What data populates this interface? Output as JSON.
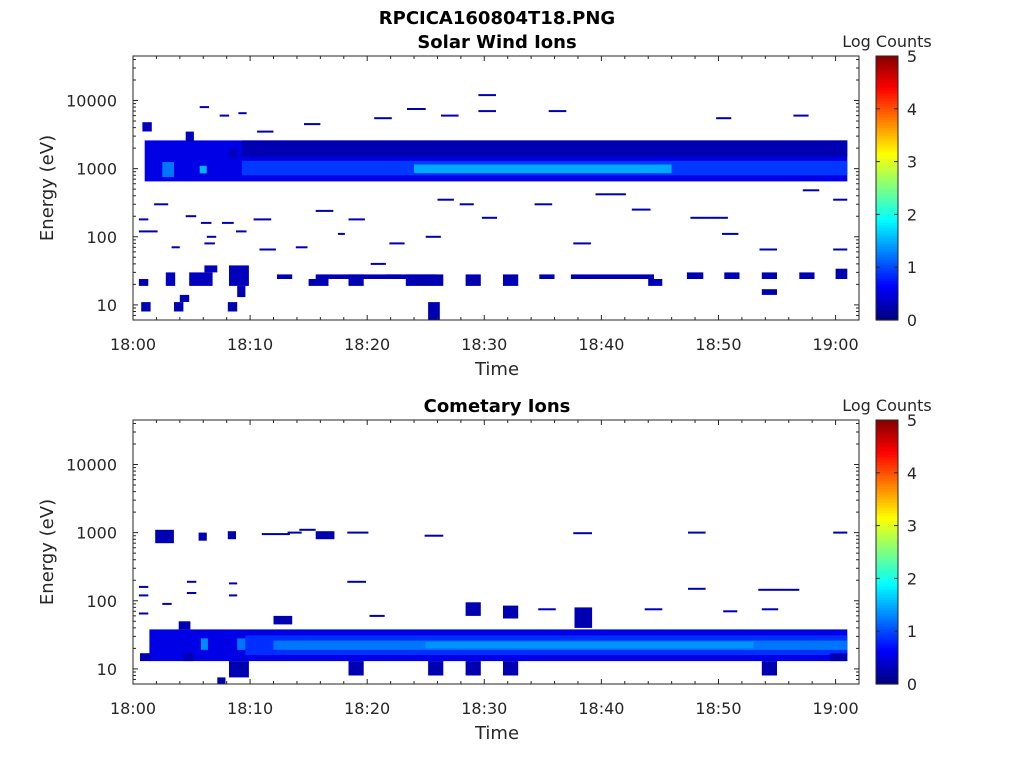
{
  "figure": {
    "title": "RPCICA160804T18.PNG"
  },
  "chart_data": [
    {
      "type": "heatmap",
      "title": "Solar Wind Ions",
      "xlabel": "Time",
      "ylabel": "Energy (eV)",
      "y_scale": "log",
      "xlim": [
        "18:00",
        "19:02"
      ],
      "ylim": [
        6,
        45000
      ],
      "x_ticks": [
        "18:00",
        "18:10",
        "18:20",
        "18:30",
        "18:40",
        "18:50",
        "19:00"
      ],
      "y_ticks": [
        "10",
        "100",
        "1000",
        "10000"
      ],
      "colorbar": {
        "label": "Log Counts",
        "range": [
          0,
          5
        ],
        "ticks": [
          "0",
          "1",
          "2",
          "3",
          "4",
          "5"
        ],
        "colormap": "jet"
      },
      "cells": [
        {
          "t0": 1.0,
          "t1": 61.0,
          "e0": 650,
          "e1": 2600,
          "v": 0.5
        },
        {
          "t0": 9.3,
          "t1": 61.0,
          "e0": 800,
          "e1": 1300,
          "v": 0.9
        },
        {
          "t0": 24.0,
          "t1": 46.0,
          "e0": 860,
          "e1": 1150,
          "v": 1.45
        },
        {
          "t0": 2.5,
          "t1": 3.5,
          "e0": 750,
          "e1": 1250,
          "v": 1.2
        },
        {
          "t0": 5.7,
          "t1": 6.3,
          "e0": 850,
          "e1": 1100,
          "v": 1.5
        },
        {
          "t0": 9.3,
          "t1": 61.0,
          "e0": 1500,
          "e1": 2600,
          "v": 0.25
        },
        {
          "t0": 0.8,
          "t1": 1.6,
          "e0": 3500,
          "e1": 4800,
          "v": 0.3
        },
        {
          "t0": 4.5,
          "t1": 5.2,
          "e0": 2500,
          "e1": 3500,
          "v": 0.3
        },
        {
          "t0": 8.2,
          "t1": 8.9,
          "e0": 1400,
          "e1": 2000,
          "v": 0.3
        },
        {
          "t0": 0.5,
          "t1": 1.3,
          "e0": 19,
          "e1": 24,
          "v": 0.25
        },
        {
          "t0": 2.8,
          "t1": 3.6,
          "e0": 19,
          "e1": 30,
          "v": 0.3
        },
        {
          "t0": 4.8,
          "t1": 6.8,
          "e0": 19,
          "e1": 30,
          "v": 0.3
        },
        {
          "t0": 6.1,
          "t1": 7.2,
          "e0": 30,
          "e1": 38,
          "v": 0.3
        },
        {
          "t0": 8.2,
          "t1": 9.9,
          "e0": 19,
          "e1": 38,
          "v": 0.3
        },
        {
          "t0": 8.9,
          "t1": 9.6,
          "e0": 13,
          "e1": 19,
          "v": 0.25
        },
        {
          "t0": 0.7,
          "t1": 1.5,
          "e0": 8,
          "e1": 11,
          "v": 0.25
        },
        {
          "t0": 3.5,
          "t1": 4.3,
          "e0": 8,
          "e1": 11,
          "v": 0.25
        },
        {
          "t0": 4.0,
          "t1": 4.8,
          "e0": 11,
          "e1": 14,
          "v": 0.25
        },
        {
          "t0": 8.1,
          "t1": 8.9,
          "e0": 8,
          "e1": 11,
          "v": 0.25
        },
        {
          "t0": 12.3,
          "t1": 13.6,
          "e0": 24,
          "e1": 28,
          "v": 0.25
        },
        {
          "t0": 15.0,
          "t1": 16.7,
          "e0": 19,
          "e1": 24,
          "v": 0.25
        },
        {
          "t0": 15.6,
          "t1": 25.9,
          "e0": 24,
          "e1": 28,
          "v": 0.25
        },
        {
          "t0": 18.4,
          "t1": 19.7,
          "e0": 19,
          "e1": 28,
          "v": 0.25
        },
        {
          "t0": 21.6,
          "t1": 22.9,
          "e0": 24,
          "e1": 28,
          "v": 0.25
        },
        {
          "t0": 23.3,
          "t1": 26.5,
          "e0": 19,
          "e1": 28,
          "v": 0.25
        },
        {
          "t0": 28.4,
          "t1": 29.7,
          "e0": 19,
          "e1": 28,
          "v": 0.25
        },
        {
          "t0": 31.6,
          "t1": 32.9,
          "e0": 19,
          "e1": 28,
          "v": 0.25
        },
        {
          "t0": 34.7,
          "t1": 36.0,
          "e0": 24,
          "e1": 28,
          "v": 0.25
        },
        {
          "t0": 37.4,
          "t1": 44.5,
          "e0": 24,
          "e1": 28,
          "v": 0.25
        },
        {
          "t0": 44.0,
          "t1": 45.2,
          "e0": 19,
          "e1": 24,
          "v": 0.25
        },
        {
          "t0": 47.3,
          "t1": 48.7,
          "e0": 24,
          "e1": 30,
          "v": 0.25
        },
        {
          "t0": 50.5,
          "t1": 51.8,
          "e0": 24,
          "e1": 30,
          "v": 0.25
        },
        {
          "t0": 53.7,
          "t1": 55.0,
          "e0": 24,
          "e1": 30,
          "v": 0.25
        },
        {
          "t0": 53.7,
          "t1": 55.0,
          "e0": 14,
          "e1": 17,
          "v": 0.25
        },
        {
          "t0": 56.9,
          "t1": 58.2,
          "e0": 24,
          "e1": 30,
          "v": 0.25
        },
        {
          "t0": 60.0,
          "t1": 61.0,
          "e0": 24,
          "e1": 34,
          "v": 0.25
        },
        {
          "t0": 25.2,
          "t1": 26.2,
          "e0": 6,
          "e1": 11,
          "v": 0.25
        }
      ],
      "lines": [
        {
          "t0": 0.5,
          "t1": 1.3,
          "e": 180
        },
        {
          "t0": 1.8,
          "t1": 3.0,
          "e": 300
        },
        {
          "t0": 3.3,
          "t1": 4.0,
          "e": 70
        },
        {
          "t0": 4.5,
          "t1": 5.4,
          "e": 200
        },
        {
          "t0": 5.8,
          "t1": 6.7,
          "e": 160
        },
        {
          "t0": 6.3,
          "t1": 7.1,
          "e": 100
        },
        {
          "t0": 7.6,
          "t1": 8.6,
          "e": 160
        },
        {
          "t0": 8.8,
          "t1": 9.7,
          "e": 120
        },
        {
          "t0": 10.3,
          "t1": 11.8,
          "e": 180
        },
        {
          "t0": 10.8,
          "t1": 12.2,
          "e": 65
        },
        {
          "t0": 13.9,
          "t1": 14.9,
          "e": 70
        },
        {
          "t0": 15.6,
          "t1": 17.1,
          "e": 240
        },
        {
          "t0": 17.5,
          "t1": 18.1,
          "e": 110
        },
        {
          "t0": 18.4,
          "t1": 19.8,
          "e": 180
        },
        {
          "t0": 20.3,
          "t1": 21.6,
          "e": 40
        },
        {
          "t0": 21.9,
          "t1": 23.2,
          "e": 80
        },
        {
          "t0": 25.0,
          "t1": 26.3,
          "e": 100
        },
        {
          "t0": 26.0,
          "t1": 27.4,
          "e": 350
        },
        {
          "t0": 27.9,
          "t1": 29.1,
          "e": 300
        },
        {
          "t0": 29.8,
          "t1": 31.1,
          "e": 190
        },
        {
          "t0": 34.3,
          "t1": 35.8,
          "e": 300
        },
        {
          "t0": 37.6,
          "t1": 39.1,
          "e": 80
        },
        {
          "t0": 39.5,
          "t1": 42.1,
          "e": 420
        },
        {
          "t0": 42.6,
          "t1": 44.2,
          "e": 250
        },
        {
          "t0": 47.6,
          "t1": 50.8,
          "e": 190
        },
        {
          "t0": 50.3,
          "t1": 51.7,
          "e": 110
        },
        {
          "t0": 53.5,
          "t1": 55.0,
          "e": 65
        },
        {
          "t0": 57.2,
          "t1": 58.6,
          "e": 480
        },
        {
          "t0": 59.8,
          "t1": 61.0,
          "e": 350
        },
        {
          "t0": 59.8,
          "t1": 61.0,
          "e": 65
        },
        {
          "t0": 20.6,
          "t1": 22.1,
          "e": 5500
        },
        {
          "t0": 23.4,
          "t1": 25.0,
          "e": 7500
        },
        {
          "t0": 26.3,
          "t1": 27.8,
          "e": 6000
        },
        {
          "t0": 29.5,
          "t1": 31.0,
          "e": 12000
        },
        {
          "t0": 29.5,
          "t1": 31.0,
          "e": 7000
        },
        {
          "t0": 35.5,
          "t1": 37.0,
          "e": 7000
        },
        {
          "t0": 49.8,
          "t1": 51.1,
          "e": 5500
        },
        {
          "t0": 56.4,
          "t1": 57.7,
          "e": 6000
        },
        {
          "t0": 10.6,
          "t1": 12.0,
          "e": 3500
        },
        {
          "t0": 14.6,
          "t1": 16.0,
          "e": 4500
        },
        {
          "t0": 5.7,
          "t1": 6.5,
          "e": 8000
        },
        {
          "t0": 7.4,
          "t1": 8.2,
          "e": 6000
        },
        {
          "t0": 9.0,
          "t1": 9.7,
          "e": 6500
        },
        {
          "t0": 0.5,
          "t1": 2.1,
          "e": 120
        },
        {
          "t0": 6.1,
          "t1": 7.0,
          "e": 80
        }
      ]
    },
    {
      "type": "heatmap",
      "title": "Cometary Ions",
      "xlabel": "Time",
      "ylabel": "Energy (eV)",
      "y_scale": "log",
      "xlim": [
        "18:00",
        "19:02"
      ],
      "ylim": [
        6,
        45000
      ],
      "x_ticks": [
        "18:00",
        "18:10",
        "18:20",
        "18:30",
        "18:40",
        "18:50",
        "19:00"
      ],
      "y_ticks": [
        "10",
        "100",
        "1000",
        "10000"
      ],
      "colorbar": {
        "label": "Log Counts",
        "range": [
          0,
          5
        ],
        "ticks": [
          "0",
          "1",
          "2",
          "3",
          "4",
          "5"
        ],
        "colormap": "jet"
      },
      "cells": [
        {
          "t0": 1.4,
          "t1": 61.0,
          "e0": 13,
          "e1": 38,
          "v": 0.5
        },
        {
          "t0": 9.6,
          "t1": 61.0,
          "e0": 16,
          "e1": 31,
          "v": 0.85
        },
        {
          "t0": 12.0,
          "t1": 61.0,
          "e0": 19,
          "e1": 26,
          "v": 1.2
        },
        {
          "t0": 25.0,
          "t1": 53.0,
          "e0": 20,
          "e1": 25,
          "v": 1.35
        },
        {
          "t0": 5.8,
          "t1": 6.4,
          "e0": 19,
          "e1": 28,
          "v": 1.3
        },
        {
          "t0": 8.9,
          "t1": 9.6,
          "e0": 19,
          "e1": 28,
          "v": 1.2
        },
        {
          "t0": 1.9,
          "t1": 3.5,
          "e0": 700,
          "e1": 1100,
          "v": 0.25
        },
        {
          "t0": 5.6,
          "t1": 6.3,
          "e0": 760,
          "e1": 1000,
          "v": 0.25
        },
        {
          "t0": 8.1,
          "t1": 8.8,
          "e0": 800,
          "e1": 1050,
          "v": 0.25
        },
        {
          "t0": 15.6,
          "t1": 17.2,
          "e0": 800,
          "e1": 1050,
          "v": 0.25
        },
        {
          "t0": 8.2,
          "t1": 9.9,
          "e0": 7.5,
          "e1": 13,
          "v": 0.25
        },
        {
          "t0": 7.2,
          "t1": 7.9,
          "e0": 6,
          "e1": 7.5,
          "v": 0.25
        },
        {
          "t0": 18.4,
          "t1": 19.7,
          "e0": 8,
          "e1": 13,
          "v": 0.25
        },
        {
          "t0": 25.2,
          "t1": 26.5,
          "e0": 8,
          "e1": 13,
          "v": 0.25
        },
        {
          "t0": 28.4,
          "t1": 29.7,
          "e0": 8,
          "e1": 13,
          "v": 0.25
        },
        {
          "t0": 31.6,
          "t1": 32.9,
          "e0": 8,
          "e1": 13,
          "v": 0.25
        },
        {
          "t0": 53.7,
          "t1": 55.0,
          "e0": 8,
          "e1": 13,
          "v": 0.25
        },
        {
          "t0": 12.0,
          "t1": 13.6,
          "e0": 45,
          "e1": 60,
          "v": 0.25
        },
        {
          "t0": 28.4,
          "t1": 29.7,
          "e0": 60,
          "e1": 95,
          "v": 0.25
        },
        {
          "t0": 31.6,
          "t1": 32.9,
          "e0": 55,
          "e1": 85,
          "v": 0.25
        },
        {
          "t0": 37.7,
          "t1": 39.2,
          "e0": 40,
          "e1": 80,
          "v": 0.25
        },
        {
          "t0": 3.9,
          "t1": 4.9,
          "e0": 38,
          "e1": 50,
          "v": 0.25
        },
        {
          "t0": 0.6,
          "t1": 1.5,
          "e0": 13,
          "e1": 17,
          "v": 0.25
        },
        {
          "t0": 4.3,
          "t1": 5.2,
          "e0": 13,
          "e1": 17,
          "v": 0.25
        },
        {
          "t0": 59.5,
          "t1": 61.0,
          "e0": 13,
          "e1": 17,
          "v": 0.25
        }
      ],
      "lines": [
        {
          "t0": 0.5,
          "t1": 1.3,
          "e": 160
        },
        {
          "t0": 0.5,
          "t1": 1.3,
          "e": 120
        },
        {
          "t0": 0.5,
          "t1": 1.3,
          "e": 65
        },
        {
          "t0": 2.5,
          "t1": 3.3,
          "e": 90
        },
        {
          "t0": 4.6,
          "t1": 5.4,
          "e": 190
        },
        {
          "t0": 4.6,
          "t1": 5.4,
          "e": 130
        },
        {
          "t0": 8.2,
          "t1": 8.9,
          "e": 180
        },
        {
          "t0": 8.2,
          "t1": 8.9,
          "e": 120
        },
        {
          "t0": 14.2,
          "t1": 15.6,
          "e": 1100
        },
        {
          "t0": 18.3,
          "t1": 19.9,
          "e": 190
        },
        {
          "t0": 18.3,
          "t1": 20.1,
          "e": 1000
        },
        {
          "t0": 20.2,
          "t1": 21.5,
          "e": 60
        },
        {
          "t0": 24.9,
          "t1": 26.5,
          "e": 900
        },
        {
          "t0": 34.6,
          "t1": 36.1,
          "e": 75
        },
        {
          "t0": 37.6,
          "t1": 39.2,
          "e": 980
        },
        {
          "t0": 43.7,
          "t1": 45.2,
          "e": 75
        },
        {
          "t0": 47.4,
          "t1": 48.9,
          "e": 1000
        },
        {
          "t0": 47.4,
          "t1": 48.9,
          "e": 150
        },
        {
          "t0": 50.4,
          "t1": 51.6,
          "e": 70
        },
        {
          "t0": 53.4,
          "t1": 56.9,
          "e": 145
        },
        {
          "t0": 53.7,
          "t1": 55.1,
          "e": 75
        },
        {
          "t0": 59.8,
          "t1": 61.0,
          "e": 1000
        },
        {
          "t0": 11.0,
          "t1": 13.4,
          "e": 950
        },
        {
          "t0": 13.2,
          "t1": 14.4,
          "e": 1000
        }
      ]
    }
  ]
}
